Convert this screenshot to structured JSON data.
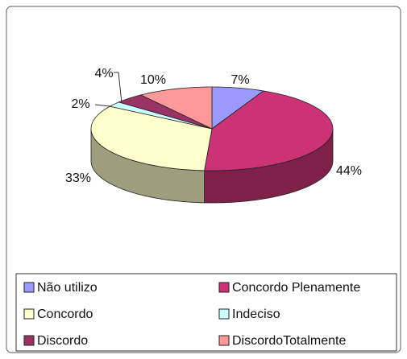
{
  "chart_data": {
    "type": "pie3d",
    "categories": [
      "Não utilizo",
      "Concordo Plenamente",
      "Concordo",
      "Indeciso",
      "Discordo",
      "DiscordoTotalmente"
    ],
    "values": [
      7,
      44,
      33,
      2,
      4,
      10
    ],
    "value_labels": [
      "7%",
      "44%",
      "33%",
      "2%",
      "4%",
      "10%"
    ],
    "colors": [
      "#9999ff",
      "#cc3377",
      "#ffffcc",
      "#ccffff",
      "#993366",
      "#ff9999"
    ],
    "legend": "bottom"
  }
}
